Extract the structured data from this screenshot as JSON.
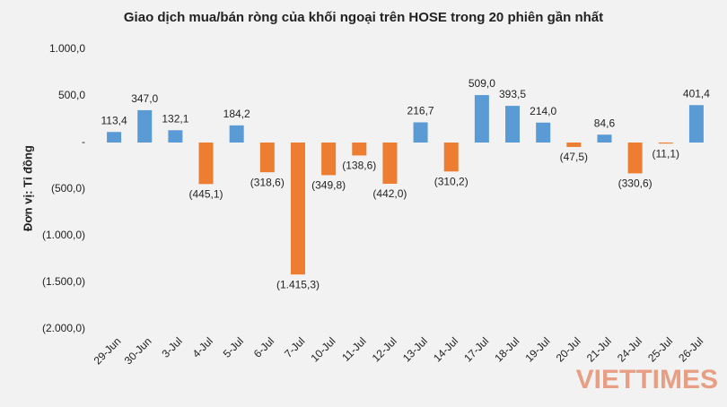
{
  "chart_data": {
    "type": "bar",
    "title": "Giao dịch mua/bán ròng của khối ngoại trên HOSE trong 20 phiên gần nhất",
    "y_label": "Đơn vị: Tỉ đồng",
    "categories": [
      "29-Jun",
      "30-Jun",
      "3-Jul",
      "4-Jul",
      "5-Jul",
      "6-Jul",
      "7-Jul",
      "10-Jul",
      "11-Jul",
      "12-Jul",
      "13-Jul",
      "14-Jul",
      "17-Jul",
      "18-Jul",
      "19-Jul",
      "20-Jul",
      "21-Jul",
      "24-Jul",
      "25-Jul",
      "26-Jul"
    ],
    "values": [
      113.4,
      347.0,
      132.1,
      -445.1,
      184.2,
      -318.6,
      -1415.3,
      -349.8,
      -138.6,
      -442.0,
      216.7,
      -310.2,
      509.0,
      393.5,
      214.0,
      -47.5,
      84.6,
      -330.6,
      -11.1,
      401.4
    ],
    "value_labels": [
      "113,4",
      "347,0",
      "132,1",
      "(445,1)",
      "184,2",
      "(318,6)",
      "(1.415,3)",
      "(349,8)",
      "(138,6)",
      "(442,0)",
      "216,7",
      "(310,2)",
      "509,0",
      "393,5",
      "214,0",
      "(47,5)",
      "84,6",
      "(330,6)",
      "(11,1)",
      "401,4"
    ],
    "positive_color": "#5b9bd5",
    "negative_color": "#ed7d31",
    "ylim": [
      -2000,
      1000
    ],
    "yticks": [
      {
        "value": 1000,
        "label": "1.000,0"
      },
      {
        "value": 500,
        "label": "500,0"
      },
      {
        "value": 0,
        "label": "-"
      },
      {
        "value": -500,
        "label": "(500,0)"
      },
      {
        "value": -1000,
        "label": "(1.000,0)"
      },
      {
        "value": -1500,
        "label": "(1.500,0)"
      },
      {
        "value": -2000,
        "label": "(2.000,0)"
      }
    ],
    "grid": false,
    "watermark": "VIETTIMES"
  }
}
